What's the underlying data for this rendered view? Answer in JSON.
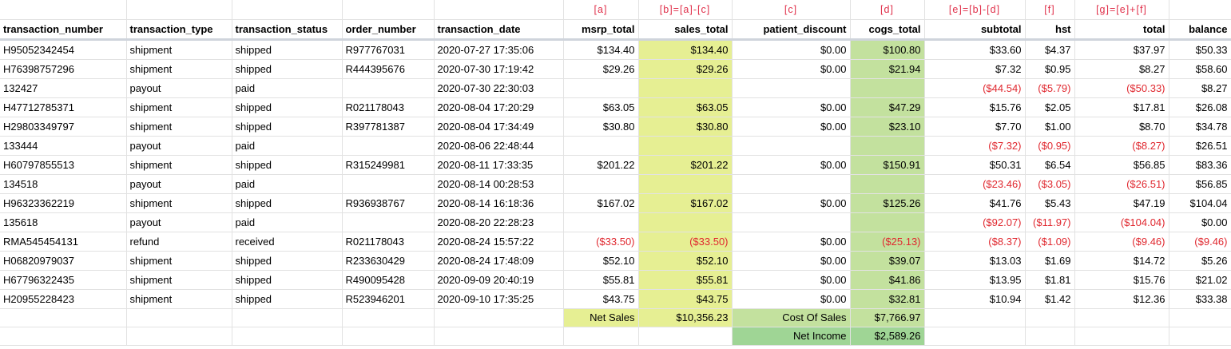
{
  "formulas": {
    "msrp_total": "[a]",
    "sales_total": "[b]=[a]-[c]",
    "patient_discount": "[c]",
    "cogs_total": "[d]",
    "subtotal": "[e]=[b]-[d]",
    "hst": "[f]",
    "total": "[g]=[e]+[f]"
  },
  "headers": {
    "transaction_number": "transaction_number",
    "transaction_type": "transaction_type",
    "transaction_status": "transaction_status",
    "order_number": "order_number",
    "transaction_date": "transaction_date",
    "msrp_total": "msrp_total",
    "sales_total": "sales_total",
    "patient_discount": "patient_discount",
    "cogs_total": "cogs_total",
    "subtotal": "subtotal",
    "hst": "hst",
    "total": "total",
    "balance": "balance"
  },
  "rows": [
    {
      "transaction_number": "H95052342454",
      "transaction_type": "shipment",
      "transaction_status": "shipped",
      "order_number": "R977767031",
      "transaction_date": "2020-07-27 17:35:06",
      "msrp_total": "$134.40",
      "sales_total": "$134.40",
      "patient_discount": "$0.00",
      "cogs_total": "$100.80",
      "subtotal": "$33.60",
      "hst": "$4.37",
      "total": "$37.97",
      "balance": "$50.33"
    },
    {
      "transaction_number": "H76398757296",
      "transaction_type": "shipment",
      "transaction_status": "shipped",
      "order_number": "R444395676",
      "transaction_date": "2020-07-30 17:19:42",
      "msrp_total": "$29.26",
      "sales_total": "$29.26",
      "patient_discount": "$0.00",
      "cogs_total": "$21.94",
      "subtotal": "$7.32",
      "hst": "$0.95",
      "total": "$8.27",
      "balance": "$58.60"
    },
    {
      "transaction_number": "132427",
      "transaction_type": "payout",
      "transaction_status": "paid",
      "order_number": "",
      "transaction_date": "2020-07-30 22:30:03",
      "msrp_total": "",
      "sales_total": "",
      "patient_discount": "",
      "cogs_total": "",
      "subtotal": "($44.54)",
      "hst": "($5.79)",
      "total": "($50.33)",
      "balance": "$8.27"
    },
    {
      "transaction_number": "H47712785371",
      "transaction_type": "shipment",
      "transaction_status": "shipped",
      "order_number": "R021178043",
      "transaction_date": "2020-08-04 17:20:29",
      "msrp_total": "$63.05",
      "sales_total": "$63.05",
      "patient_discount": "$0.00",
      "cogs_total": "$47.29",
      "subtotal": "$15.76",
      "hst": "$2.05",
      "total": "$17.81",
      "balance": "$26.08"
    },
    {
      "transaction_number": "H29803349797",
      "transaction_type": "shipment",
      "transaction_status": "shipped",
      "order_number": "R397781387",
      "transaction_date": "2020-08-04 17:34:49",
      "msrp_total": "$30.80",
      "sales_total": "$30.80",
      "patient_discount": "$0.00",
      "cogs_total": "$23.10",
      "subtotal": "$7.70",
      "hst": "$1.00",
      "total": "$8.70",
      "balance": "$34.78"
    },
    {
      "transaction_number": "133444",
      "transaction_type": "payout",
      "transaction_status": "paid",
      "order_number": "",
      "transaction_date": "2020-08-06 22:48:44",
      "msrp_total": "",
      "sales_total": "",
      "patient_discount": "",
      "cogs_total": "",
      "subtotal": "($7.32)",
      "hst": "($0.95)",
      "total": "($8.27)",
      "balance": "$26.51"
    },
    {
      "transaction_number": "H60797855513",
      "transaction_type": "shipment",
      "transaction_status": "shipped",
      "order_number": "R315249981",
      "transaction_date": "2020-08-11 17:33:35",
      "msrp_total": "$201.22",
      "sales_total": "$201.22",
      "patient_discount": "$0.00",
      "cogs_total": "$150.91",
      "subtotal": "$50.31",
      "hst": "$6.54",
      "total": "$56.85",
      "balance": "$83.36"
    },
    {
      "transaction_number": "134518",
      "transaction_type": "payout",
      "transaction_status": "paid",
      "order_number": "",
      "transaction_date": "2020-08-14 00:28:53",
      "msrp_total": "",
      "sales_total": "",
      "patient_discount": "",
      "cogs_total": "",
      "subtotal": "($23.46)",
      "hst": "($3.05)",
      "total": "($26.51)",
      "balance": "$56.85"
    },
    {
      "transaction_number": "H96323362219",
      "transaction_type": "shipment",
      "transaction_status": "shipped",
      "order_number": "R936938767",
      "transaction_date": "2020-08-14 16:18:36",
      "msrp_total": "$167.02",
      "sales_total": "$167.02",
      "patient_discount": "$0.00",
      "cogs_total": "$125.26",
      "subtotal": "$41.76",
      "hst": "$5.43",
      "total": "$47.19",
      "balance": "$104.04"
    },
    {
      "transaction_number": "135618",
      "transaction_type": "payout",
      "transaction_status": "paid",
      "order_number": "",
      "transaction_date": "2020-08-20 22:28:23",
      "msrp_total": "",
      "sales_total": "",
      "patient_discount": "",
      "cogs_total": "",
      "subtotal": "($92.07)",
      "hst": "($11.97)",
      "total": "($104.04)",
      "balance": "$0.00"
    },
    {
      "transaction_number": "RMA545454131",
      "transaction_type": "refund",
      "transaction_status": "received",
      "order_number": "R021178043",
      "transaction_date": "2020-08-24 15:57:22",
      "msrp_total": "($33.50)",
      "sales_total": "($33.50)",
      "patient_discount": "$0.00",
      "cogs_total": "($25.13)",
      "subtotal": "($8.37)",
      "hst": "($1.09)",
      "total": "($9.46)",
      "balance": "($9.46)"
    },
    {
      "transaction_number": "H06820979037",
      "transaction_type": "shipment",
      "transaction_status": "shipped",
      "order_number": "R233630429",
      "transaction_date": "2020-08-24 17:48:09",
      "msrp_total": "$52.10",
      "sales_total": "$52.10",
      "patient_discount": "$0.00",
      "cogs_total": "$39.07",
      "subtotal": "$13.03",
      "hst": "$1.69",
      "total": "$14.72",
      "balance": "$5.26"
    },
    {
      "transaction_number": "H67796322435",
      "transaction_type": "shipment",
      "transaction_status": "shipped",
      "order_number": "R490095428",
      "transaction_date": "2020-09-09 20:40:19",
      "msrp_total": "$55.81",
      "sales_total": "$55.81",
      "patient_discount": "$0.00",
      "cogs_total": "$41.86",
      "subtotal": "$13.95",
      "hst": "$1.81",
      "total": "$15.76",
      "balance": "$21.02"
    },
    {
      "transaction_number": "H20955228423",
      "transaction_type": "shipment",
      "transaction_status": "shipped",
      "order_number": "R523946201",
      "transaction_date": "2020-09-10 17:35:25",
      "msrp_total": "$43.75",
      "sales_total": "$43.75",
      "patient_discount": "$0.00",
      "cogs_total": "$32.81",
      "subtotal": "$10.94",
      "hst": "$1.42",
      "total": "$12.36",
      "balance": "$33.38"
    }
  ],
  "summary": {
    "net_sales_label": "Net Sales",
    "net_sales_value": "$10,356.23",
    "cost_of_sales_label": "Cost Of Sales",
    "cost_of_sales_value": "$7,766.97",
    "net_income_label": "Net Income",
    "net_income_value": "$2,589.26"
  },
  "colors": {
    "highlight_yellow": "#e6ef93",
    "highlight_green": "#c3e19e",
    "highlight_dark_green": "#9fd595",
    "negative_red": "#e0282f",
    "formula_red": "#e0304a"
  }
}
